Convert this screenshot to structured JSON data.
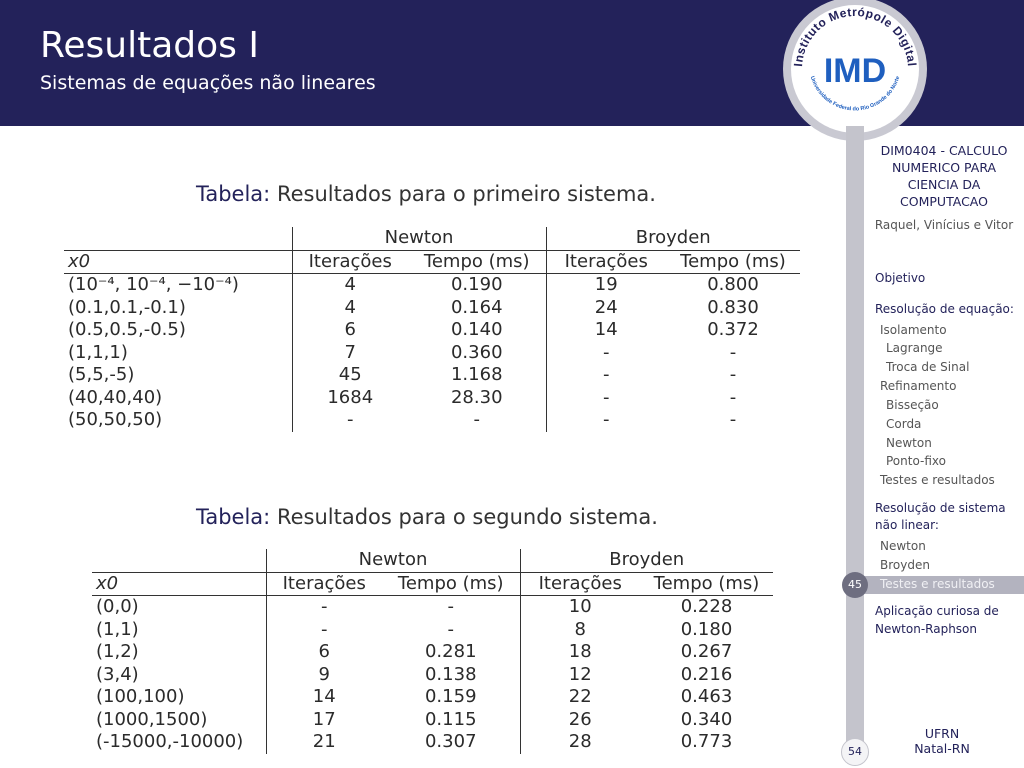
{
  "header": {
    "title": "Resultados I",
    "subtitle": "Sistemas de equações não lineares"
  },
  "logo": {
    "top_text": "Instituto Metrópole Digital",
    "acronym": "IMD",
    "bottom_text": "Universidade Federal do Rio Grande do Norte"
  },
  "sidebar": {
    "course": "DIM0404 - CALCULO NUMERICO PARA CIENCIA DA COMPUTACAO",
    "authors": "Raquel, Vinícius e Vitor",
    "items": [
      {
        "label": "Objetivo"
      },
      {
        "label": "Resolução de equação:"
      },
      {
        "label": "Isolamento"
      },
      {
        "label": "Lagrange"
      },
      {
        "label": "Troca de Sinal"
      },
      {
        "label": "Refinamento"
      },
      {
        "label": "Bisseção"
      },
      {
        "label": "Corda"
      },
      {
        "label": "Newton"
      },
      {
        "label": "Ponto-fixo"
      },
      {
        "label": "Testes e resultados"
      },
      {
        "label": "Resolução de sistema"
      },
      {
        "label": "não linear:"
      },
      {
        "label": "Newton"
      },
      {
        "label": "Broyden"
      },
      {
        "label": "Testes e resultados"
      },
      {
        "label": "Aplicação curiosa de"
      },
      {
        "label": "Newton-Raphson"
      }
    ],
    "current_slide": "45",
    "total_slides": "54",
    "footer_line1": "UFRN",
    "footer_line2": "Natal-RN"
  },
  "colors": {
    "header_bg": "#23225a",
    "sidebar_rail": "#c4c4cc",
    "highlight": "#b3b3bf"
  },
  "table1": {
    "caption_label": "Tabela:",
    "caption_text": "Resultados para o primeiro sistema.",
    "group_newton": "Newton",
    "group_broyden": "Broyden",
    "col_x0": "x0",
    "col_iter": "Iterações",
    "col_time": "Tempo (ms)",
    "rows": [
      {
        "x0": "(10⁻⁴, 10⁻⁴, −10⁻⁴)",
        "n_iter": "4",
        "n_time": "0.190",
        "b_iter": "19",
        "b_time": "0.800"
      },
      {
        "x0": "(0.1,0.1,-0.1)",
        "n_iter": "4",
        "n_time": "0.164",
        "b_iter": "24",
        "b_time": "0.830"
      },
      {
        "x0": "(0.5,0.5,-0.5)",
        "n_iter": "6",
        "n_time": "0.140",
        "b_iter": "14",
        "b_time": "0.372"
      },
      {
        "x0": "(1,1,1)",
        "n_iter": "7",
        "n_time": "0.360",
        "b_iter": "-",
        "b_time": "-"
      },
      {
        "x0": "(5,5,-5)",
        "n_iter": "45",
        "n_time": "1.168",
        "b_iter": "-",
        "b_time": "-"
      },
      {
        "x0": "(40,40,40)",
        "n_iter": "1684",
        "n_time": "28.30",
        "b_iter": "-",
        "b_time": "-"
      },
      {
        "x0": "(50,50,50)",
        "n_iter": "-",
        "n_time": "-",
        "b_iter": "-",
        "b_time": "-"
      }
    ]
  },
  "table2": {
    "caption_label": "Tabela:",
    "caption_text": "Resultados para o segundo sistema.",
    "group_newton": "Newton",
    "group_broyden": "Broyden",
    "col_x0": "x0",
    "col_iter": "Iterações",
    "col_time": "Tempo (ms)",
    "rows": [
      {
        "x0": "(0,0)",
        "n_iter": "-",
        "n_time": "-",
        "b_iter": "10",
        "b_time": "0.228"
      },
      {
        "x0": "(1,1)",
        "n_iter": "-",
        "n_time": "-",
        "b_iter": "8",
        "b_time": "0.180"
      },
      {
        "x0": "(1,2)",
        "n_iter": "6",
        "n_time": "0.281",
        "b_iter": "18",
        "b_time": "0.267"
      },
      {
        "x0": "(3,4)",
        "n_iter": "9",
        "n_time": "0.138",
        "b_iter": "12",
        "b_time": "0.216"
      },
      {
        "x0": "(100,100)",
        "n_iter": "14",
        "n_time": "0.159",
        "b_iter": "22",
        "b_time": "0.463"
      },
      {
        "x0": "(1000,1500)",
        "n_iter": "17",
        "n_time": "0.115",
        "b_iter": "26",
        "b_time": "0.340"
      },
      {
        "x0": "(-15000,-10000)",
        "n_iter": "21",
        "n_time": "0.307",
        "b_iter": "28",
        "b_time": "0.773"
      }
    ]
  }
}
